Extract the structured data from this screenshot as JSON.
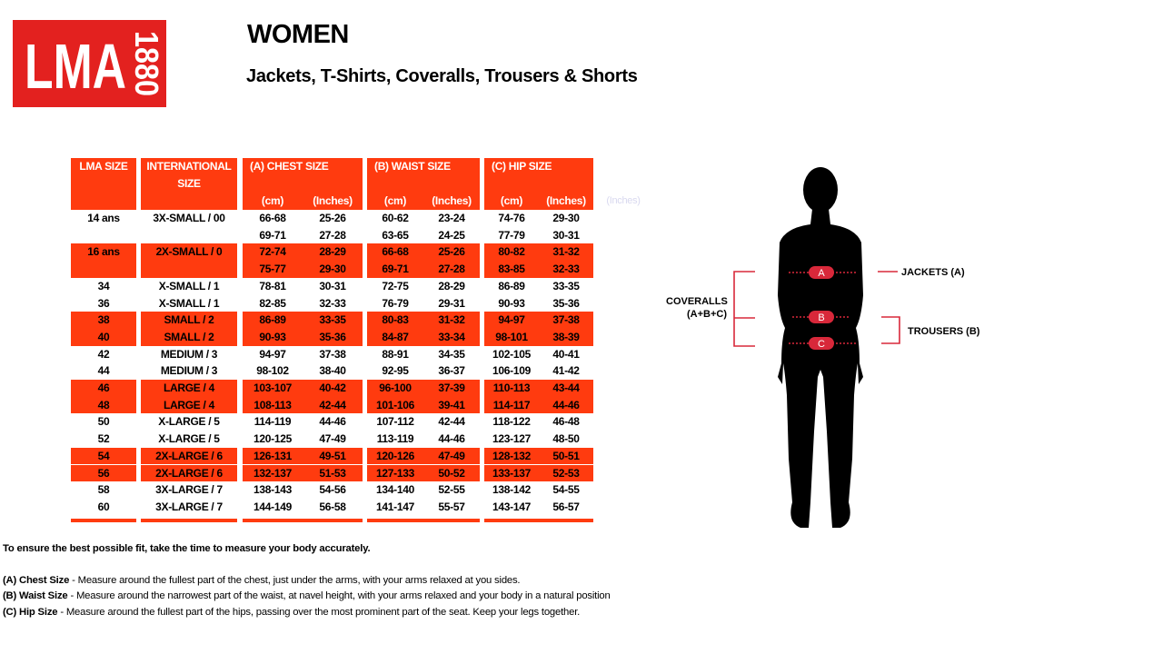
{
  "logo": {
    "brand": "LMA",
    "year": "1880"
  },
  "header": {
    "title": "WOMEN",
    "subtitle": "Jackets, T-Shirts, Coveralls, Trousers & Shorts"
  },
  "table": {
    "headers": [
      "LMA SIZE",
      "INTERNATIONAL SIZE",
      "(A) CHEST SIZE",
      "(B) WAIST SIZE",
      "(C) HIP SIZE"
    ],
    "units": [
      "(cm)",
      "(Inches)",
      "(cm)",
      "(Inches)",
      "(cm)",
      "(Inches)"
    ],
    "ghost_unit": "(Inches)",
    "rows": [
      {
        "lma": "14 ans",
        "intl": "3X-SMALL / 00",
        "cells": [
          "66-68",
          "25-26",
          "60-62",
          "23-24",
          "74-76",
          "29-30"
        ]
      },
      {
        "cells": [
          "69-71",
          "27-28",
          "63-65",
          "24-25",
          "77-79",
          "30-31"
        ]
      },
      {
        "lma": "16 ans",
        "intl": "2X-SMALL / 0",
        "cells": [
          "72-74",
          "28-29",
          "66-68",
          "25-26",
          "80-82",
          "31-32"
        ]
      },
      {
        "cells": [
          "75-77",
          "29-30",
          "69-71",
          "27-28",
          "83-85",
          "32-33"
        ]
      },
      {
        "lma": "34",
        "intl": "X-SMALL / 1",
        "cells": [
          "78-81",
          "30-31",
          "72-75",
          "28-29",
          "86-89",
          "33-35"
        ]
      },
      {
        "lma": "36",
        "intl": "X-SMALL / 1",
        "cells": [
          "82-85",
          "32-33",
          "76-79",
          "29-31",
          "90-93",
          "35-36"
        ]
      },
      {
        "lma": "38",
        "intl": "SMALL / 2",
        "cells": [
          "86-89",
          "33-35",
          "80-83",
          "31-32",
          "94-97",
          "37-38"
        ]
      },
      {
        "lma": "40",
        "intl": "SMALL / 2",
        "cells": [
          "90-93",
          "35-36",
          "84-87",
          "33-34",
          "98-101",
          "38-39"
        ]
      },
      {
        "lma": "42",
        "intl": "MEDIUM / 3",
        "cells": [
          "94-97",
          "37-38",
          "88-91",
          "34-35",
          "102-105",
          "40-41"
        ]
      },
      {
        "lma": "44",
        "intl": "MEDIUM / 3",
        "cells": [
          "98-102",
          "38-40",
          "92-95",
          "36-37",
          "106-109",
          "41-42"
        ]
      },
      {
        "lma": "46",
        "intl": "LARGE / 4",
        "cells": [
          "103-107",
          "40-42",
          "96-100",
          "37-39",
          "110-113",
          "43-44"
        ]
      },
      {
        "lma": "48",
        "intl": "LARGE / 4",
        "cells": [
          "108-113",
          "42-44",
          "101-106",
          "39-41",
          "114-117",
          "44-46"
        ]
      },
      {
        "lma": "50",
        "intl": "X-LARGE / 5",
        "cells": [
          "114-119",
          "44-46",
          "107-112",
          "42-44",
          "118-122",
          "46-48"
        ]
      },
      {
        "lma": "52",
        "intl": "X-LARGE / 5",
        "cells": [
          "120-125",
          "47-49",
          "113-119",
          "44-46",
          "123-127",
          "48-50"
        ]
      },
      {
        "lma": "54",
        "intl": "2X-LARGE / 6",
        "cells": [
          "126-131",
          "49-51",
          "120-126",
          "47-49",
          "128-132",
          "50-51"
        ]
      },
      {
        "lma": "56",
        "intl": "2X-LARGE / 6",
        "cells": [
          "132-137",
          "51-53",
          "127-133",
          "50-52",
          "133-137",
          "52-53"
        ]
      },
      {
        "lma": "58",
        "intl": "3X-LARGE / 7",
        "cells": [
          "138-143",
          "54-56",
          "134-140",
          "52-55",
          "138-142",
          "54-55"
        ]
      },
      {
        "lma": "60",
        "intl": "3X-LARGE / 7",
        "cells": [
          "144-149",
          "56-58",
          "141-147",
          "55-57",
          "143-147",
          "56-57"
        ]
      }
    ]
  },
  "figure": {
    "markers": [
      "A",
      "B",
      "C"
    ],
    "jackets": "JACKETS (A)",
    "coveralls": [
      "COVERALLS",
      "(A+B+C)"
    ],
    "trousers": "TROUSERS (B)"
  },
  "notes": {
    "intro": "To ensure the best possible fit, take the time to measure your body accurately.",
    "items": [
      {
        "label": "(A) Chest Size",
        "text": "- Measure around the fullest part of the chest, just under the arms, with your arms relaxed at you sides."
      },
      {
        "label": "(B) Waist Size",
        "text": "- Measure around the narrowest part of the waist, at navel height, with your arms relaxed and your body in a natural position"
      },
      {
        "label": "(C) Hip Size",
        "text": "- Measure around the fullest part of the hips, passing over the most prominent part of the seat.  Keep your legs together."
      }
    ]
  }
}
